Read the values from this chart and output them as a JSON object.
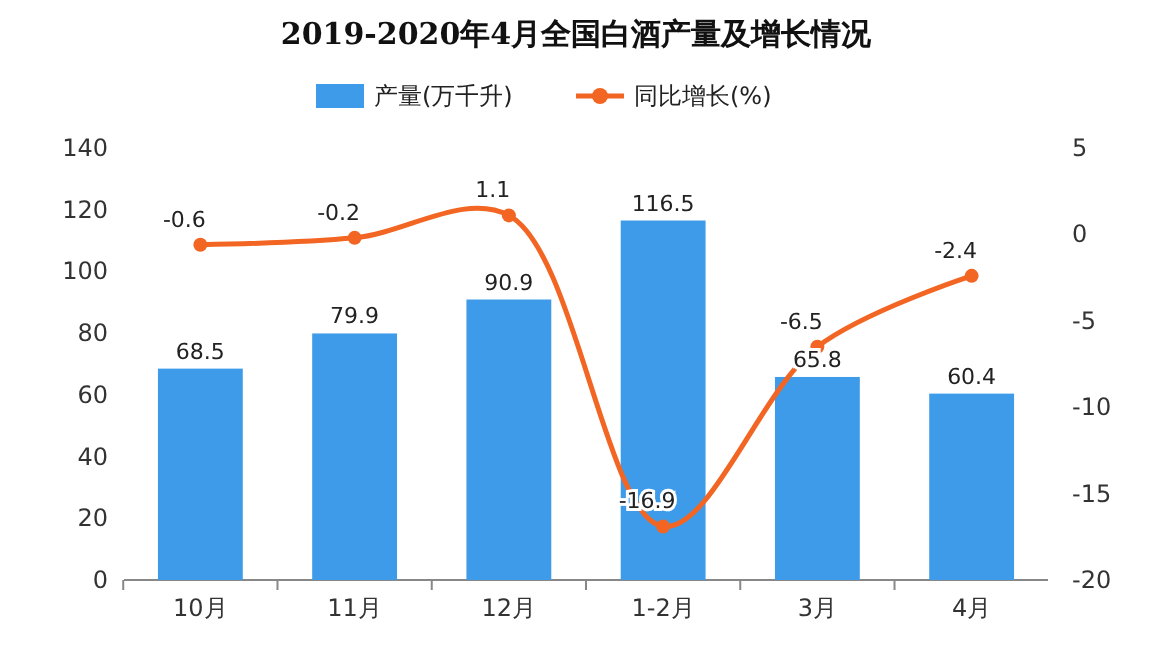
{
  "chart_data": {
    "type": "bar",
    "title": "2019-2020年4月全国白酒产量及增长情况",
    "categories": [
      "10月",
      "11月",
      "12月",
      "1-2月",
      "3月",
      "4月"
    ],
    "series": [
      {
        "name": "产量(万千升)",
        "color": "#3d9be9",
        "values": [
          68.5,
          79.9,
          90.9,
          116.5,
          65.8,
          60.4
        ]
      },
      {
        "name": "同比增长(%)",
        "type": "line",
        "axis": "y2",
        "color": "#f26522",
        "values": [
          -0.6,
          -0.2,
          1.1,
          -16.9,
          -6.5,
          -2.4
        ]
      }
    ],
    "ylim": [
      0,
      140
    ],
    "yticks": [
      0,
      20,
      40,
      60,
      80,
      100,
      120,
      140
    ],
    "y2lim": [
      -20,
      5
    ],
    "y2ticks": [
      -20,
      -15,
      -10,
      -5,
      0,
      5
    ],
    "legend": "top",
    "grid": false,
    "data_labels": true,
    "marker": "circle"
  }
}
